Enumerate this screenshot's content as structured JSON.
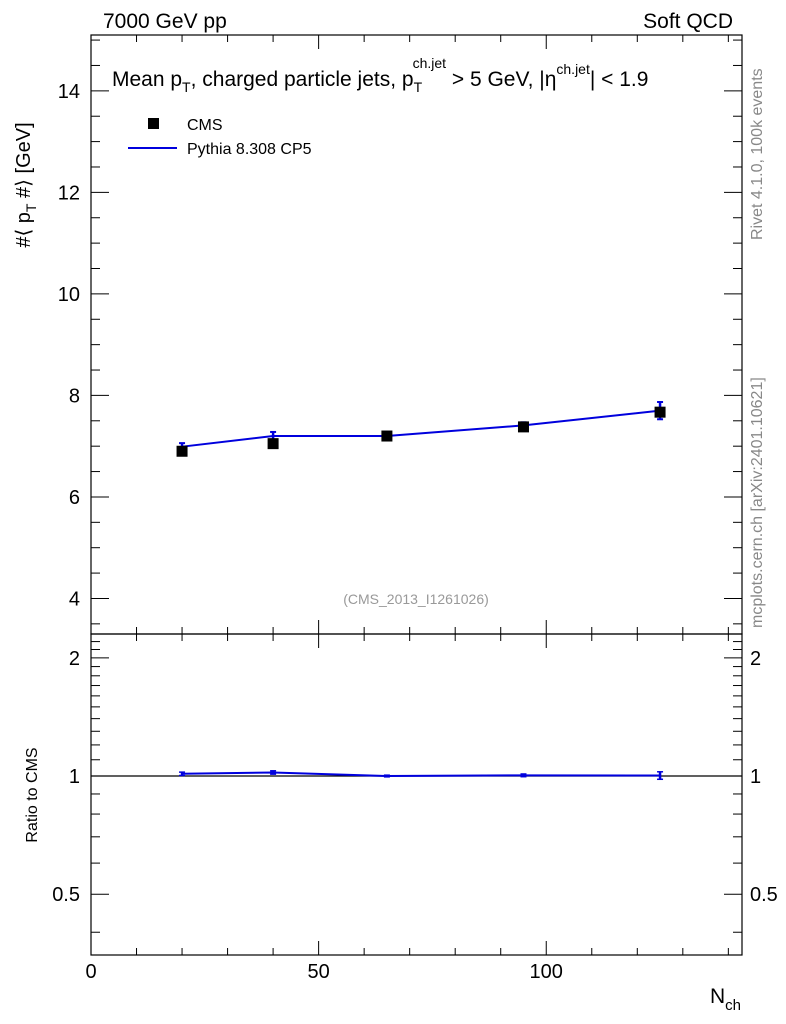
{
  "header": {
    "left_label": "7000 GeV pp",
    "right_label": "Soft QCD"
  },
  "side_labels": {
    "rivet": "Rivet 4.1.0,  100k events",
    "mcplots": "mcplots.cern.ch [arXiv:2401.10621]"
  },
  "chart_data": {
    "type": "line",
    "title": {
      "main": "Mean p",
      "main_sub": "T",
      "middle": ", charged particle jets, p",
      "middle_sub": "T",
      "middle_sup": "ch.jet",
      "cut1": " > 5 GeV,  |",
      "eta": "η",
      "eta_sup": "ch.jet",
      "cut2": "| < 1.9"
    },
    "ylabel": {
      "prefix": "#⟨ p",
      "sub": "T",
      "suffix": " #⟩ [GeV]"
    },
    "xlabel": {
      "main": "N",
      "sub": "ch"
    },
    "ratio_ylabel": "Ratio to CMS",
    "watermark": "(CMS_2013_I1261026)",
    "xlim": [
      0,
      143
    ],
    "ylim": [
      3.3,
      15.1
    ],
    "ratio_ylim": [
      0.35,
      2.3
    ],
    "xticks": [
      0,
      50,
      100
    ],
    "yticks": [
      4,
      6,
      8,
      10,
      12,
      14
    ],
    "ratio_yticks": [
      0.5,
      1,
      2
    ],
    "legend_position": "top-left",
    "series": [
      {
        "name": "CMS",
        "kind": "data-points",
        "marker": "square",
        "color": "#000000",
        "x": [
          20,
          40,
          65,
          95,
          125
        ],
        "y": [
          6.9,
          7.05,
          7.2,
          7.38,
          7.67
        ],
        "yerr": [
          0.06,
          0.06,
          0.06,
          0.07,
          0.1
        ]
      },
      {
        "name": "Pythia 8.308 CP5",
        "kind": "line",
        "color": "#0000dd",
        "x": [
          20,
          40,
          65,
          95,
          125
        ],
        "y": [
          6.99,
          7.2,
          7.2,
          7.41,
          7.7
        ],
        "yerr": [
          0.07,
          0.08,
          0.05,
          0.06,
          0.17
        ],
        "ratio": [
          1.013,
          1.021,
          1.0,
          1.004,
          1.003
        ],
        "ratio_err": [
          0.01,
          0.01,
          0.005,
          0.008,
          0.022
        ]
      }
    ]
  }
}
